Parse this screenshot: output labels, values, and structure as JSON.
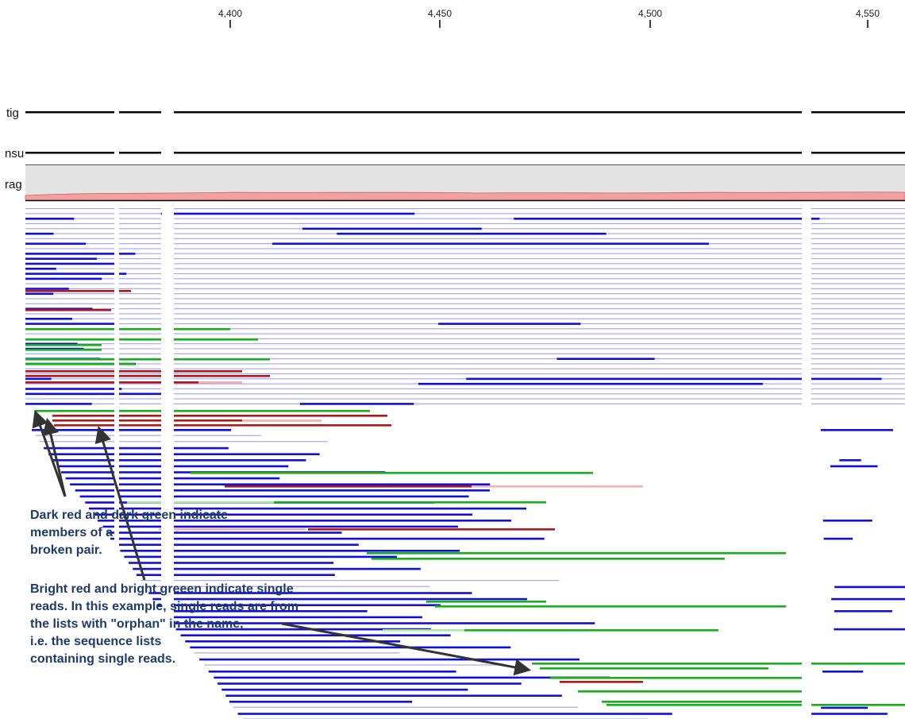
{
  "ruler": {
    "ticks": [
      "4,400",
      "4,450",
      "4,500",
      "4,550"
    ]
  },
  "tracks": {
    "contig_label": "tig",
    "consensus_label": "nsu",
    "coverage_label": "rag"
  },
  "annotations": {
    "broken_pair_line1": "Dark red and dark green indicate",
    "broken_pair_line2": "members of a",
    "broken_pair_line3": "broken pair.",
    "single_reads_line1": "Bright red and bright greeen indicate single",
    "single_reads_line2": "reads. In this example, single reads are from",
    "single_reads_line3": "the lists with \"orphan\" in the name,",
    "single_reads_line4": "i.e. the sequence lists",
    "single_reads_line5": "containing single reads."
  },
  "colors": {
    "read_light": "#a8a8f0",
    "read_dark": "#1010d8",
    "broken_red": "#b01818",
    "broken_green": "#18b018",
    "single_red": "#f2b0b0",
    "single_green": "#a8e8a8",
    "coverage_fill": "#e4e4e4",
    "coverage_bar": "#f4a0a0",
    "annotation_text": "#1f3a6b"
  }
}
